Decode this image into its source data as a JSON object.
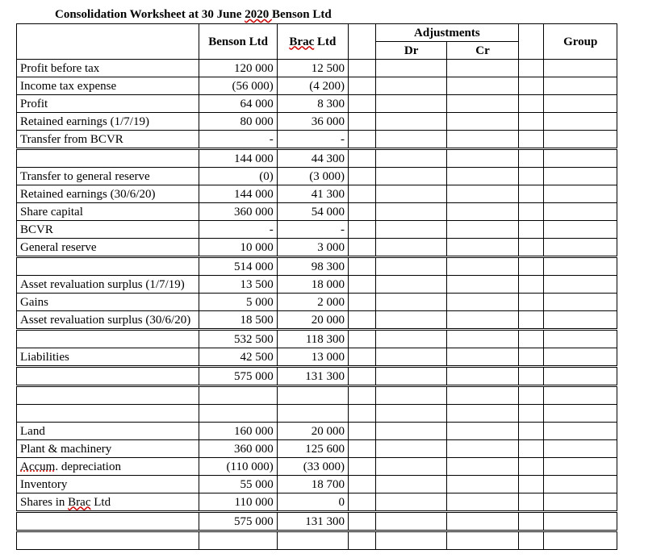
{
  "title_prefix": "Consolidation Worksheet at 30 June ",
  "title_date": "2020 ",
  "title_company": "Benson Ltd",
  "headers": {
    "benson": "Benson Ltd",
    "brac_pre": "Brac",
    "brac_post": " Ltd",
    "adjustments": "Adjustments",
    "dr": "Dr",
    "cr": "Cr",
    "group": "Group"
  },
  "rows": [
    {
      "label": "Profit before tax",
      "benson": "120 000",
      "brac": "12 500"
    },
    {
      "label": "Income tax expense",
      "benson": "(56 000)",
      "brac": "(4 200)"
    },
    {
      "label": "Profit",
      "benson": "64 000",
      "brac": "8 300"
    },
    {
      "label": "Retained earnings (1/7/19)",
      "benson": "80 000",
      "brac": "36 000"
    },
    {
      "label": "Transfer from BCVR",
      "benson": "",
      "brac": ""
    },
    {
      "label": "",
      "benson": "144 000",
      "brac": "44 300"
    },
    {
      "label": "Transfer to general reserve",
      "benson": "(0)",
      "brac": "(3 000)"
    },
    {
      "label": "Retained earnings (30/6/20)",
      "benson": "144 000",
      "brac": "41 300"
    },
    {
      "label": "Share capital",
      "benson": "360 000",
      "brac": "54 000"
    },
    {
      "label": "BCVR",
      "benson": "",
      "brac": ""
    },
    {
      "label": "General reserve",
      "benson": "10 000",
      "brac": "3 000"
    },
    {
      "label": "",
      "benson": "514 000",
      "brac": "98 300"
    },
    {
      "label": "Asset revaluation surplus (1/7/19)",
      "benson": "13 500",
      "brac": "18 000"
    },
    {
      "label": "Gains",
      "benson": "5 000",
      "brac": "2 000"
    },
    {
      "label": "Asset revaluation surplus (30/6/20)",
      "benson": "18 500",
      "brac": "20 000"
    },
    {
      "label": "",
      "benson": "532 500",
      "brac": "118 300"
    },
    {
      "label": "Liabilities",
      "benson": "42 500",
      "brac": "13 000"
    },
    {
      "label": "",
      "benson": "575 000",
      "brac": "131 300"
    },
    {
      "label": "",
      "benson": "",
      "brac": ""
    },
    {
      "label": "",
      "benson": "",
      "brac": ""
    },
    {
      "label": "Land",
      "benson": "160 000",
      "brac": "20 000"
    },
    {
      "label": "Plant & machinery",
      "benson": "360 000",
      "brac": "125 600"
    },
    {
      "label_pre": "Accum",
      "label_dot": ".",
      "label_post": " depreciation",
      "benson": "(110 000)",
      "brac": "(33 000)",
      "dotted": true
    },
    {
      "label": "Inventory",
      "benson": "55 000",
      "brac": "18 700"
    },
    {
      "label_pre": "Shares in ",
      "label_wavy": "Brac",
      "label_post": " Ltd",
      "benson": "110 000",
      "brac": "0",
      "wavy": true
    },
    {
      "label": "",
      "benson": "575 000",
      "brac": "131 300"
    },
    {
      "label": "",
      "benson": "",
      "brac": ""
    }
  ],
  "dashRows": [
    4,
    9
  ],
  "dblTopRows": [
    5,
    11,
    15,
    17,
    25
  ],
  "dblBottomRows": [
    17,
    25
  ],
  "colors": {
    "background": "#ffffff",
    "text": "#000000",
    "wavy": "#c00"
  }
}
